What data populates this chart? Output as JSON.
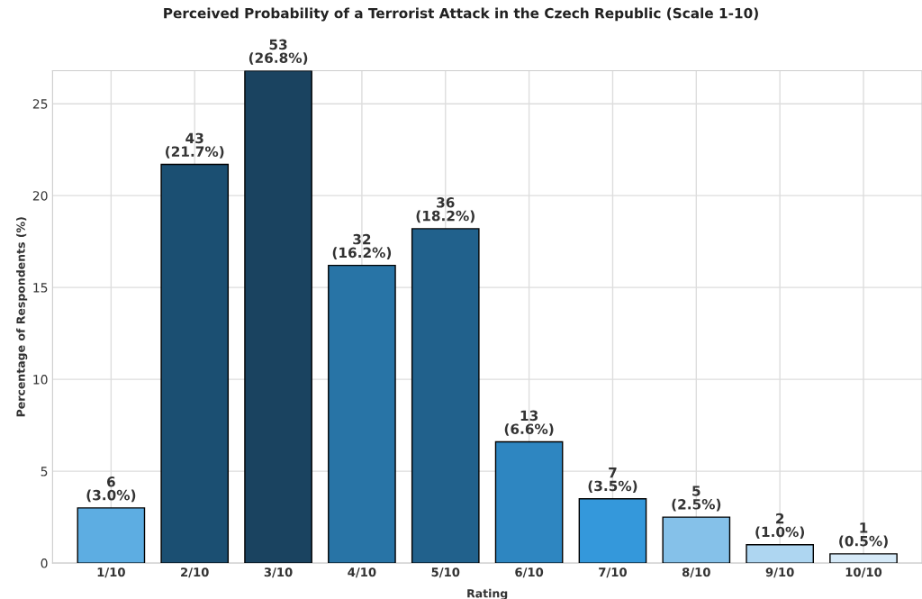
{
  "chart_data": {
    "type": "bar",
    "title": "Perceived Probability of a Terrorist Attack in the Czech Republic (Scale 1-10)",
    "xlabel": "Rating",
    "ylabel": "Percentage of Respondents (%)",
    "categories": [
      "1/10",
      "2/10",
      "3/10",
      "4/10",
      "5/10",
      "6/10",
      "7/10",
      "8/10",
      "9/10",
      "10/10"
    ],
    "values": [
      3.0,
      21.7,
      26.8,
      16.2,
      18.2,
      6.6,
      3.5,
      2.5,
      1.0,
      0.5
    ],
    "colors": [
      "#5dade2",
      "#1b4f72",
      "#1a4360",
      "#2874a6",
      "#21618c",
      "#2e86c1",
      "#3498db",
      "#85c1e9",
      "#aed6f1",
      "#d6eaf8"
    ],
    "value_labels": [
      "6\n(3.0%)",
      "43\n(21.7%)",
      "53\n(26.8%)",
      "32\n(16.2%)",
      "36\n(18.2%)",
      "13\n(6.6%)",
      "7\n(3.5%)",
      "5\n(2.5%)",
      "2\n(1.0%)",
      "1\n(0.5%)"
    ],
    "ylim": [
      0,
      26.8
    ],
    "yticks": [
      0,
      5,
      10,
      15,
      20,
      25
    ],
    "grid": true
  }
}
